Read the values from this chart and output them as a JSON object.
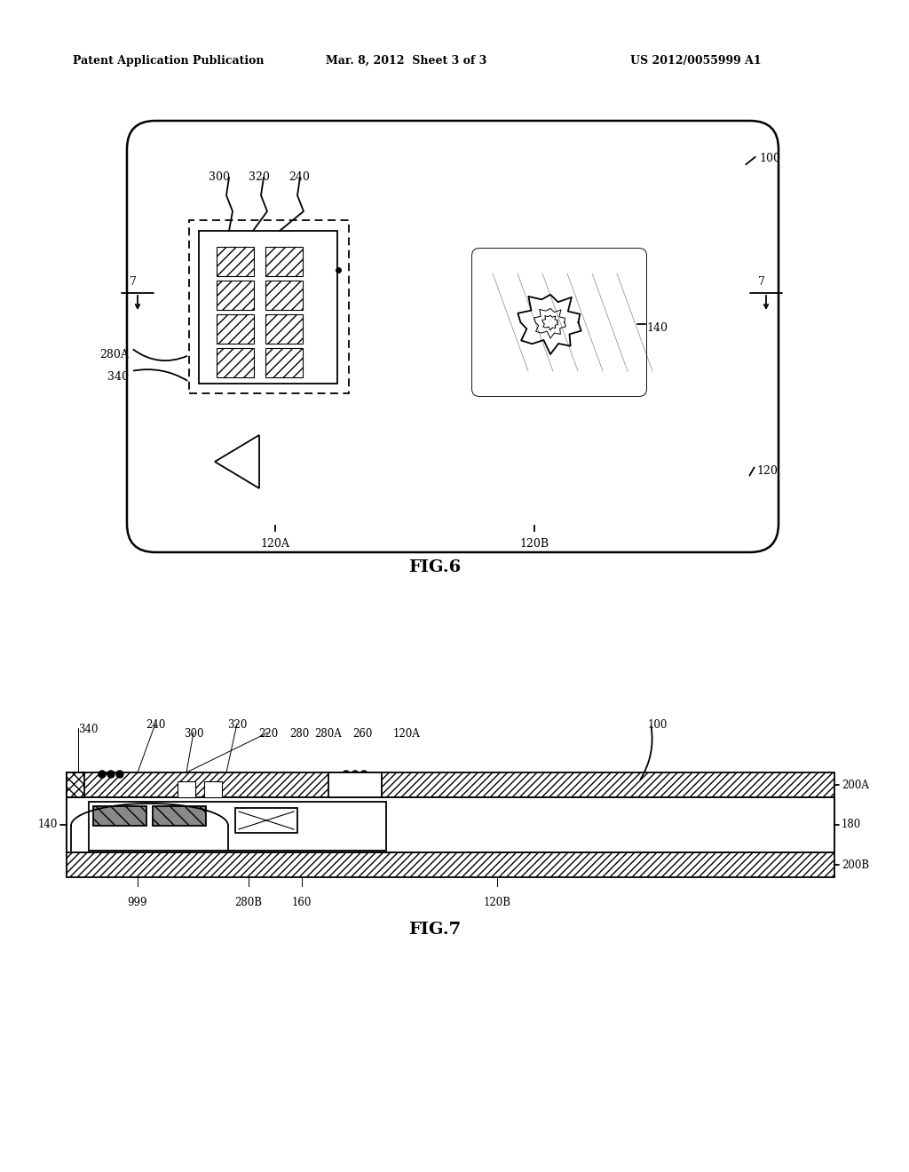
{
  "bg_color": "#ffffff",
  "header_text1": "Patent Application Publication",
  "header_text2": "Mar. 8, 2012  Sheet 3 of 3",
  "header_text3": "US 2012/0055999 A1",
  "fig6_label": "FIG.6",
  "fig7_label": "FIG.7"
}
